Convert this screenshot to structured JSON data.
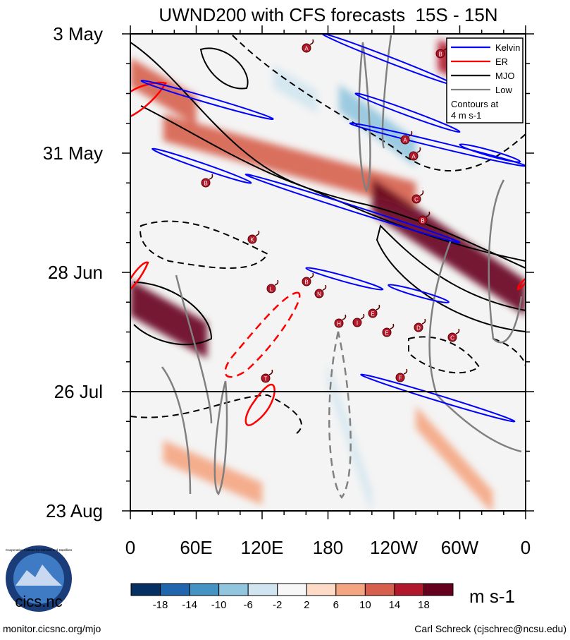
{
  "chart_data": {
    "type": "heatmap",
    "title": "UWND200 with CFS forecasts  15S - 15N",
    "xlabel": "",
    "ylabel": "",
    "x_range": [
      0,
      360
    ],
    "y_range_days": [
      0,
      112
    ],
    "x_ticks": [
      {
        "lon": 0,
        "label": "0"
      },
      {
        "lon": 60,
        "label": "60E"
      },
      {
        "lon": 120,
        "label": "120E"
      },
      {
        "lon": 180,
        "label": "180"
      },
      {
        "lon": 240,
        "label": "120W"
      },
      {
        "lon": 300,
        "label": "60W"
      },
      {
        "lon": 360,
        "label": "0"
      }
    ],
    "y_ticks": [
      {
        "day": 0,
        "label": "3 May"
      },
      {
        "day": 28,
        "label": "31 May"
      },
      {
        "day": 56,
        "label": "28 Jun"
      },
      {
        "day": 84,
        "label": "26 Jul"
      },
      {
        "day": 112,
        "label": "23 Aug"
      }
    ],
    "forecast_start_day": 84,
    "colorbar": {
      "units": "m s-1",
      "labels": [
        "-18",
        "-14",
        "-10",
        "-6",
        "-2",
        "2",
        "6",
        "10",
        "14",
        "18"
      ],
      "colors": [
        "#053061",
        "#2166ac",
        "#4393c3",
        "#92c5de",
        "#d1e5f0",
        "#f7f7f7",
        "#fddbc7",
        "#f4a582",
        "#d6604d",
        "#b2182b",
        "#67001f"
      ]
    },
    "anomaly_features": [
      {
        "lon1": 0,
        "day1": 9,
        "lon2": 60,
        "day2": 18,
        "value": 12
      },
      {
        "lon1": 30,
        "day1": 22,
        "lon2": 260,
        "day2": 38,
        "value": 10
      },
      {
        "lon1": 220,
        "day1": 38,
        "lon2": 360,
        "day2": 62,
        "value": 18
      },
      {
        "lon1": 280,
        "day1": 5,
        "lon2": 350,
        "day2": 12,
        "value": 14
      },
      {
        "lon1": 0,
        "day1": 62,
        "lon2": 70,
        "day2": 72,
        "value": 18
      },
      {
        "lon1": 190,
        "day1": 15,
        "lon2": 260,
        "day2": 28,
        "value": -10
      },
      {
        "lon1": 130,
        "day1": 10,
        "lon2": 170,
        "day2": 16,
        "value": -6
      },
      {
        "lon1": 180,
        "day1": 80,
        "lon2": 220,
        "day2": 110,
        "value": -6
      },
      {
        "lon1": 260,
        "day1": 90,
        "lon2": 330,
        "day2": 110,
        "value": 6
      },
      {
        "lon1": 30,
        "day1": 98,
        "lon2": 120,
        "day2": 108,
        "value": 6
      }
    ],
    "legend": {
      "position": "top-right",
      "entries": [
        {
          "name": "Kelvin",
          "color": "#0000ff"
        },
        {
          "name": "ER",
          "color": "#ff0000"
        },
        {
          "name": "MJO",
          "color": "#000000"
        },
        {
          "name": "Low",
          "color": "#808080"
        }
      ],
      "note_line1": "Contours at",
      "note_line2": "4 m s-1"
    },
    "kelvin_contours": [
      {
        "lon1": 175,
        "day1": 0,
        "lon2": 295,
        "day2": 12
      },
      {
        "lon1": 10,
        "day1": 11,
        "lon2": 130,
        "day2": 20
      },
      {
        "lon1": 205,
        "day1": 14,
        "lon2": 300,
        "day2": 23
      },
      {
        "lon1": 200,
        "day1": 21,
        "lon2": 360,
        "day2": 31
      },
      {
        "lon1": 20,
        "day1": 27,
        "lon2": 110,
        "day2": 35
      },
      {
        "lon1": 105,
        "day1": 33,
        "lon2": 300,
        "day2": 49
      },
      {
        "lon1": 160,
        "day1": 55,
        "lon2": 230,
        "day2": 60
      },
      {
        "lon1": 235,
        "day1": 59,
        "lon2": 290,
        "day2": 63
      },
      {
        "lon1": 210,
        "day1": 80,
        "lon2": 350,
        "day2": 91
      },
      {
        "lon1": 300,
        "day1": 26,
        "lon2": 355,
        "day2": 30
      }
    ],
    "cyclone_markers": [
      "A",
      "B",
      "A",
      "A",
      "B",
      "C",
      "B",
      "K",
      "B",
      "N",
      "L",
      "H",
      "I",
      "E",
      "E",
      "D",
      "C",
      "T",
      "F"
    ]
  },
  "footer": {
    "logo_text": "cics.nc",
    "logo_ring_text": "Cooperative Institute for Climate and Satellites",
    "website": "monitor.cicsnc.org/mjo",
    "credit": "Carl Schreck (cjschrec@ncsu.edu)"
  }
}
